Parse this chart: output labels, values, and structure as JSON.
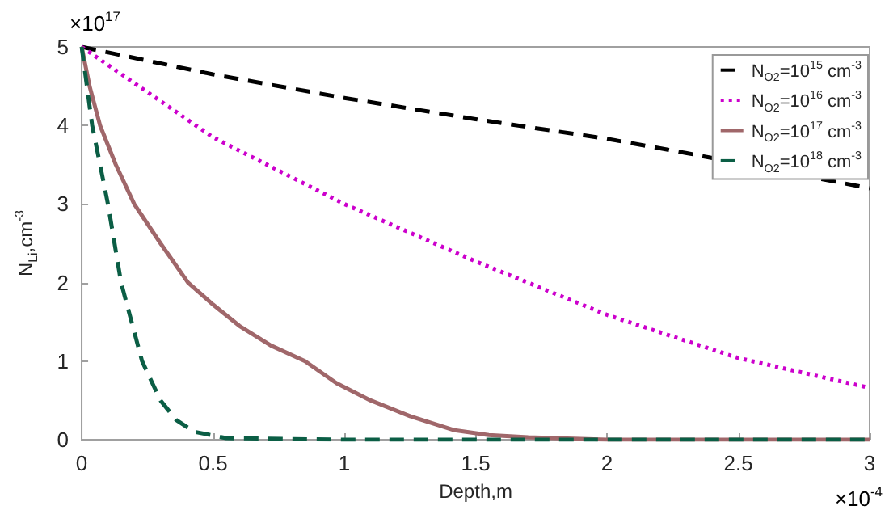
{
  "chart_data": {
    "type": "line",
    "xlabel": "Depth,m",
    "ylabel": "N$_{Li}$,cm$^{-3}$",
    "xlim": [
      0,
      3
    ],
    "xticks": [
      0,
      0.5,
      1,
      1.5,
      2,
      2.5,
      3
    ],
    "ylim": [
      0,
      5
    ],
    "yticks": [
      0,
      1,
      2,
      3,
      4,
      5
    ],
    "grid": false,
    "legend": "top right",
    "marker": "none",
    "annotations": [
      "×10$^{17}$",
      "×10$^{-4}$"
    ],
    "series": [
      {
        "name": "N$_{O2}$=10$^{15}$ cm$^{-3}$",
        "color": "#000000",
        "line_style": "dashed",
        "x": [
          0,
          0.5,
          1,
          1.5,
          2,
          2.3,
          3
        ],
        "values": [
          5,
          4.65,
          4.35,
          4.08,
          3.83,
          3.65,
          3.2
        ]
      },
      {
        "name": "N$_{O2}$=10$^{16}$ cm$^{-3}$",
        "color": "#cc00cc",
        "line_style": "dotted",
        "x": [
          0,
          0.5,
          1,
          1.5,
          2,
          2.5,
          3
        ],
        "values": [
          5,
          3.85,
          3.0,
          2.27,
          1.59,
          1.04,
          0.66
        ]
      },
      {
        "name": "N$_{O2}$=10$^{17}$ cm$^{-3}$",
        "color": "#a0676a",
        "line_style": "solid",
        "x": [
          0,
          0.03,
          0.07,
          0.13,
          0.2,
          0.3,
          0.405,
          0.5,
          0.6,
          0.72,
          0.85,
          0.97,
          1.1,
          1.25,
          1.42,
          1.55,
          1.7,
          2,
          2.5,
          3
        ],
        "values": [
          5,
          4.5,
          4,
          3.5,
          3,
          2.5,
          2,
          1.72,
          1.45,
          1.2,
          1,
          0.72,
          0.5,
          0.3,
          0.12,
          0.06,
          0.03,
          0,
          0,
          0
        ]
      },
      {
        "name": "N$_{O2}$=10$^{18}$ cm$^{-3}$",
        "color": "#0b5e45",
        "line_style": "dashed",
        "x": [
          0,
          0.02,
          0.04,
          0.07,
          0.1,
          0.125,
          0.15,
          0.19,
          0.23,
          0.3,
          0.36,
          0.43,
          0.55,
          1,
          2,
          3
        ],
        "values": [
          5,
          4.5,
          4,
          3.5,
          3,
          2.5,
          2,
          1.5,
          1,
          0.5,
          0.25,
          0.1,
          0.02,
          0,
          0,
          0
        ]
      }
    ]
  }
}
